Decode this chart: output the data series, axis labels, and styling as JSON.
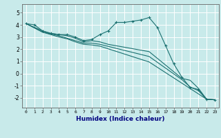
{
  "bg_color": "#c8eaea",
  "grid_color": "#ffffff",
  "line_color": "#1a7070",
  "xlabel": "Humidex (Indice chaleur)",
  "xlim": [
    -0.5,
    23.5
  ],
  "ylim": [
    -2.8,
    5.7
  ],
  "yticks": [
    -2,
    -1,
    0,
    1,
    2,
    3,
    4,
    5
  ],
  "xticks": [
    0,
    1,
    2,
    3,
    4,
    5,
    6,
    7,
    8,
    9,
    10,
    11,
    12,
    13,
    14,
    15,
    16,
    17,
    18,
    19,
    20,
    21,
    22,
    23
  ],
  "series": [
    {
      "x": [
        0,
        1,
        2,
        3,
        4,
        5,
        6,
        7,
        8,
        9,
        10,
        11,
        12,
        13,
        14,
        15,
        16,
        17,
        18,
        19,
        20,
        21,
        22,
        23
      ],
      "y": [
        4.1,
        4.0,
        3.5,
        3.3,
        3.2,
        3.2,
        3.0,
        2.7,
        2.8,
        3.2,
        3.5,
        4.2,
        4.2,
        4.3,
        4.4,
        4.6,
        3.8,
        2.3,
        0.8,
        -0.3,
        -1.15,
        -1.3,
        -2.1,
        -2.15
      ],
      "marker": "+",
      "markersize": 3.5
    },
    {
      "x": [
        0,
        2,
        3,
        4,
        5,
        6,
        7,
        8,
        9,
        10,
        15,
        19,
        20,
        21,
        22,
        23
      ],
      "y": [
        4.1,
        3.5,
        3.3,
        3.2,
        3.1,
        2.9,
        2.6,
        2.7,
        2.6,
        2.4,
        1.8,
        -0.4,
        -0.55,
        -1.2,
        -2.1,
        -2.15
      ],
      "marker": null,
      "markersize": 0
    },
    {
      "x": [
        0,
        2,
        3,
        4,
        5,
        6,
        7,
        8,
        9,
        15,
        19,
        20,
        21,
        22,
        23
      ],
      "y": [
        4.1,
        3.4,
        3.25,
        3.1,
        2.9,
        2.7,
        2.5,
        2.5,
        2.4,
        1.4,
        -0.5,
        -1.1,
        -1.4,
        -2.1,
        -2.15
      ],
      "marker": null,
      "markersize": 0
    },
    {
      "x": [
        0,
        2,
        3,
        4,
        5,
        6,
        7,
        8,
        9,
        15,
        22,
        23
      ],
      "y": [
        4.1,
        3.4,
        3.2,
        3.0,
        2.85,
        2.6,
        2.4,
        2.35,
        2.25,
        0.95,
        -2.1,
        -2.15
      ],
      "marker": null,
      "markersize": 0
    }
  ]
}
